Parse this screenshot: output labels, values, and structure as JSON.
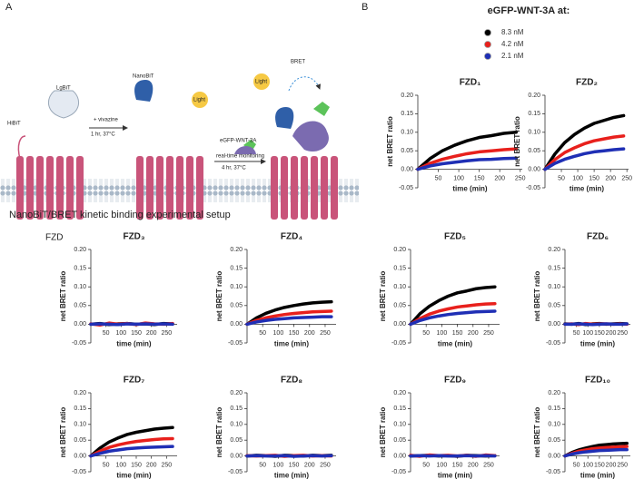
{
  "setup": {
    "panel_label": "A",
    "hibit": "HiBiT",
    "lgbit": "LgBiT",
    "vivazine": "+ vivazine",
    "step1_time": "1 hr, 37°C",
    "nanobit": "NanoBiT",
    "light1": "Light",
    "ligand": "eGFP-WNT-3A",
    "monitoring": "real-time monitoring",
    "step2_time": "4 hr, 37°C",
    "light2": "Light",
    "bret": "BRET",
    "receptor": "FZD",
    "caption": "NanoBiT/BRET kinetic binding experimental setup"
  },
  "panel_b_label": "B",
  "chart_data": [
    {
      "type": "line",
      "title": "FZD₁",
      "legend_title": "eGFP-WNT-3A at:",
      "x_label": "time (min)",
      "y_label": "net BRET ratio",
      "x": [
        0,
        30,
        60,
        90,
        120,
        150,
        180,
        210,
        240
      ],
      "series": [
        {
          "name": "8.3 nM",
          "color": "#000000",
          "values": [
            0,
            0.029,
            0.05,
            0.065,
            0.077,
            0.086,
            0.091,
            0.097,
            0.1
          ]
        },
        {
          "name": "4.2 nM",
          "color": "#e8201c",
          "values": [
            0,
            0.016,
            0.027,
            0.035,
            0.042,
            0.047,
            0.05,
            0.053,
            0.055
          ]
        },
        {
          "name": "2.1 nM",
          "color": "#1f2fb5",
          "values": [
            0,
            0.009,
            0.015,
            0.019,
            0.023,
            0.026,
            0.027,
            0.029,
            0.03
          ]
        }
      ],
      "xlim": [
        0,
        255
      ],
      "xticks": [
        50,
        100,
        150,
        200,
        250
      ],
      "ylim": [
        -0.05,
        0.2
      ],
      "yticks": [
        {
          "value": -0.05,
          "label": "-0.05"
        },
        {
          "value": 0,
          "label": "0.00"
        },
        {
          "value": 0.05,
          "label": "0.05"
        },
        {
          "value": 0.1,
          "label": "0.10"
        },
        {
          "value": 0.15,
          "label": "0.15"
        },
        {
          "value": 0.2,
          "label": "0.20"
        }
      ]
    },
    {
      "type": "line",
      "title": "FZD₂",
      "x_label": "time (min)",
      "y_label": "net BRET ratio",
      "x": [
        0,
        30,
        60,
        90,
        120,
        150,
        180,
        210,
        240
      ],
      "series": [
        {
          "color": "#000000",
          "values": [
            0,
            0.041,
            0.072,
            0.094,
            0.111,
            0.124,
            0.132,
            0.14,
            0.145
          ]
        },
        {
          "color": "#e8201c",
          "values": [
            0,
            0.026,
            0.045,
            0.058,
            0.069,
            0.077,
            0.082,
            0.087,
            0.09
          ]
        },
        {
          "color": "#1f2fb5",
          "values": [
            0,
            0.016,
            0.027,
            0.035,
            0.042,
            0.047,
            0.05,
            0.053,
            0.055
          ]
        }
      ],
      "xlim": [
        0,
        255
      ],
      "xticks": [
        50,
        100,
        150,
        200,
        250
      ],
      "ylim": [
        -0.05,
        0.2
      ],
      "yticks": [
        {
          "value": -0.05,
          "label": "-0.05"
        },
        {
          "value": 0,
          "label": "0.00"
        },
        {
          "value": 0.05,
          "label": "0.05"
        },
        {
          "value": 0.1,
          "label": "0.10"
        },
        {
          "value": 0.15,
          "label": "0.15"
        },
        {
          "value": 0.2,
          "label": "0.20"
        }
      ]
    },
    {
      "type": "line",
      "title": "FZD₃",
      "x_label": "time (min)",
      "y_label": "net BRET ratio",
      "x": [
        0,
        30,
        60,
        90,
        120,
        150,
        180,
        210,
        240,
        270
      ],
      "series": [
        {
          "color": "#000000",
          "values": [
            0,
            0.002,
            -0.001,
            0.001,
            0.002,
            0,
            0.001,
            -0.001,
            0.002,
            0.001
          ]
        },
        {
          "color": "#e8201c",
          "values": [
            0.001,
            -0.002,
            0.003,
            0,
            0.002,
            -0.001,
            0.003,
            0.001,
            0,
            0.002
          ]
        },
        {
          "color": "#1f2fb5",
          "values": [
            0,
            0.001,
            0,
            -0.001,
            0.001,
            0,
            0.001,
            0,
            0.001,
            0
          ]
        }
      ],
      "xlim": [
        0,
        285
      ],
      "xticks": [
        50,
        100,
        150,
        200,
        250
      ],
      "ylim": [
        -0.05,
        0.2
      ],
      "yticks": [
        {
          "value": -0.05,
          "label": "-0.05"
        },
        {
          "value": 0,
          "label": "0.00"
        },
        {
          "value": 0.05,
          "label": "0.05"
        },
        {
          "value": 0.1,
          "label": "0.10"
        },
        {
          "value": 0.15,
          "label": "0.15"
        },
        {
          "value": 0.2,
          "label": "0.20"
        }
      ]
    },
    {
      "type": "line",
      "title": "FZD₄",
      "x_label": "time (min)",
      "y_label": "net BRET ratio",
      "x": [
        0,
        30,
        60,
        90,
        120,
        150,
        180,
        210,
        240,
        270
      ],
      "series": [
        {
          "color": "#000000",
          "values": [
            0,
            0.017,
            0.029,
            0.038,
            0.045,
            0.05,
            0.054,
            0.057,
            0.059,
            0.06
          ]
        },
        {
          "color": "#e8201c",
          "values": [
            0,
            0.01,
            0.017,
            0.022,
            0.026,
            0.029,
            0.031,
            0.033,
            0.034,
            0.035
          ]
        },
        {
          "color": "#1f2fb5",
          "values": [
            0,
            0.006,
            0.01,
            0.013,
            0.015,
            0.017,
            0.018,
            0.019,
            0.02,
            0.02
          ]
        }
      ],
      "xlim": [
        0,
        285
      ],
      "xticks": [
        50,
        100,
        150,
        200,
        250
      ],
      "ylim": [
        -0.05,
        0.2
      ],
      "yticks": [
        {
          "value": -0.05,
          "label": "-0.05"
        },
        {
          "value": 0,
          "label": "0.00"
        },
        {
          "value": 0.05,
          "label": "0.05"
        },
        {
          "value": 0.1,
          "label": "0.10"
        },
        {
          "value": 0.15,
          "label": "0.15"
        },
        {
          "value": 0.2,
          "label": "0.20"
        }
      ]
    },
    {
      "type": "line",
      "title": "FZD₅",
      "x_label": "time (min)",
      "y_label": "net BRET ratio",
      "x": [
        0,
        30,
        60,
        90,
        120,
        150,
        180,
        210,
        240,
        270
      ],
      "series": [
        {
          "color": "#000000",
          "values": [
            0,
            0.028,
            0.048,
            0.063,
            0.075,
            0.084,
            0.089,
            0.095,
            0.098,
            0.1
          ]
        },
        {
          "color": "#e8201c",
          "values": [
            0,
            0.015,
            0.027,
            0.035,
            0.041,
            0.046,
            0.049,
            0.052,
            0.054,
            0.055
          ]
        },
        {
          "color": "#1f2fb5",
          "values": [
            0,
            0.01,
            0.017,
            0.022,
            0.026,
            0.029,
            0.031,
            0.033,
            0.034,
            0.035
          ]
        }
      ],
      "xlim": [
        0,
        285
      ],
      "xticks": [
        50,
        100,
        150,
        200,
        250
      ],
      "ylim": [
        -0.05,
        0.2
      ],
      "yticks": [
        {
          "value": -0.05,
          "label": "-0.05"
        },
        {
          "value": 0,
          "label": "0.00"
        },
        {
          "value": 0.05,
          "label": "0.05"
        },
        {
          "value": 0.1,
          "label": "0.10"
        },
        {
          "value": 0.15,
          "label": "0.15"
        },
        {
          "value": 0.2,
          "label": "0.20"
        }
      ]
    },
    {
      "type": "line",
      "title": "FZD₆",
      "x_label": "time (min)",
      "y_label": "net BRET ratio",
      "x": [
        0,
        30,
        60,
        90,
        120,
        150,
        180,
        210,
        240,
        270
      ],
      "series": [
        {
          "color": "#000000",
          "values": [
            0.001,
            0,
            0.002,
            -0.001,
            0.001,
            0.002,
            0,
            0.001,
            0.002,
            0.001
          ]
        },
        {
          "color": "#e8201c",
          "values": [
            0,
            0.001,
            -0.001,
            0.002,
            0,
            0.001,
            0.001,
            0,
            0.001,
            0
          ]
        },
        {
          "color": "#1f2fb5",
          "values": [
            0,
            0,
            0.001,
            0,
            -0.001,
            0,
            0.001,
            0,
            0,
            0.001
          ]
        }
      ],
      "xlim": [
        0,
        285
      ],
      "xticks": [
        50,
        100,
        150,
        200,
        250
      ],
      "ylim": [
        -0.05,
        0.2
      ],
      "yticks": [
        {
          "value": -0.05,
          "label": "-0.05"
        },
        {
          "value": 0,
          "label": "0.00"
        },
        {
          "value": 0.05,
          "label": "0.05"
        },
        {
          "value": 0.1,
          "label": "0.10"
        },
        {
          "value": 0.15,
          "label": "0.15"
        },
        {
          "value": 0.2,
          "label": "0.20"
        }
      ]
    },
    {
      "type": "line",
      "title": "FZD₇",
      "x_label": "time (min)",
      "y_label": "net BRET ratio",
      "x": [
        0,
        30,
        60,
        90,
        120,
        150,
        180,
        210,
        240,
        270
      ],
      "series": [
        {
          "color": "#000000",
          "values": [
            0,
            0.025,
            0.044,
            0.057,
            0.068,
            0.075,
            0.08,
            0.085,
            0.088,
            0.09
          ]
        },
        {
          "color": "#e8201c",
          "values": [
            0,
            0.015,
            0.027,
            0.035,
            0.041,
            0.046,
            0.049,
            0.052,
            0.054,
            0.055
          ]
        },
        {
          "color": "#1f2fb5",
          "values": [
            0,
            0.008,
            0.015,
            0.019,
            0.023,
            0.025,
            0.027,
            0.028,
            0.029,
            0.03
          ]
        }
      ],
      "xlim": [
        0,
        285
      ],
      "xticks": [
        50,
        100,
        150,
        200,
        250
      ],
      "ylim": [
        -0.05,
        0.2
      ],
      "yticks": [
        {
          "value": -0.05,
          "label": "-0.05"
        },
        {
          "value": 0,
          "label": "0.00"
        },
        {
          "value": 0.05,
          "label": "0.05"
        },
        {
          "value": 0.1,
          "label": "0.10"
        },
        {
          "value": 0.15,
          "label": "0.15"
        },
        {
          "value": 0.2,
          "label": "0.20"
        }
      ]
    },
    {
      "type": "line",
      "title": "FZD₈",
      "x_label": "time (min)",
      "y_label": "net BRET ratio",
      "x": [
        0,
        30,
        60,
        90,
        120,
        150,
        180,
        210,
        240,
        270
      ],
      "series": [
        {
          "color": "#000000",
          "values": [
            0,
            0.002,
            0.001,
            -0.001,
            0.002,
            0.001,
            0,
            0.002,
            0.001,
            0.002
          ]
        },
        {
          "color": "#e8201c",
          "values": [
            0.001,
            0,
            0.001,
            0.002,
            -0.001,
            0.001,
            0.002,
            0,
            0.001,
            0
          ]
        },
        {
          "color": "#1f2fb5",
          "values": [
            0,
            0.001,
            0,
            0,
            0.001,
            -0.001,
            0,
            0.001,
            0,
            0.001
          ]
        }
      ],
      "xlim": [
        0,
        285
      ],
      "xticks": [
        50,
        100,
        150,
        200,
        250
      ],
      "ylim": [
        -0.05,
        0.2
      ],
      "yticks": [
        {
          "value": -0.05,
          "label": "-0.05"
        },
        {
          "value": 0,
          "label": "0.00"
        },
        {
          "value": 0.05,
          "label": "0.05"
        },
        {
          "value": 0.1,
          "label": "0.10"
        },
        {
          "value": 0.15,
          "label": "0.15"
        },
        {
          "value": 0.2,
          "label": "0.20"
        }
      ]
    },
    {
      "type": "line",
      "title": "FZD₉",
      "x_label": "time (min)",
      "y_label": "net BRET ratio",
      "x": [
        0,
        30,
        60,
        90,
        120,
        150,
        180,
        210,
        240,
        270
      ],
      "series": [
        {
          "color": "#000000",
          "values": [
            0,
            0.001,
            0.002,
            0,
            0.001,
            -0.001,
            0.002,
            0.001,
            0,
            0.001
          ]
        },
        {
          "color": "#e8201c",
          "values": [
            0.002,
            -0.001,
            0.003,
            0.001,
            0.002,
            0,
            0.002,
            -0.001,
            0.003,
            0.001
          ]
        },
        {
          "color": "#1f2fb5",
          "values": [
            0,
            0.001,
            0,
            0.001,
            0,
            0,
            0.001,
            0,
            0.001,
            0
          ]
        }
      ],
      "xlim": [
        0,
        285
      ],
      "xticks": [
        50,
        100,
        150,
        200,
        250
      ],
      "ylim": [
        -0.05,
        0.2
      ],
      "yticks": [
        {
          "value": -0.05,
          "label": "-0.05"
        },
        {
          "value": 0,
          "label": "0.00"
        },
        {
          "value": 0.05,
          "label": "0.05"
        },
        {
          "value": 0.1,
          "label": "0.10"
        },
        {
          "value": 0.15,
          "label": "0.15"
        },
        {
          "value": 0.2,
          "label": "0.20"
        }
      ]
    },
    {
      "type": "line",
      "title": "FZD₁₀",
      "x_label": "time (min)",
      "y_label": "net BRET ratio",
      "x": [
        0,
        30,
        60,
        90,
        120,
        150,
        180,
        210,
        240,
        270
      ],
      "series": [
        {
          "color": "#000000",
          "values": [
            0,
            0.011,
            0.019,
            0.025,
            0.03,
            0.034,
            0.036,
            0.038,
            0.039,
            0.04
          ]
        },
        {
          "color": "#e8201c",
          "values": [
            0,
            0.008,
            0.015,
            0.019,
            0.023,
            0.025,
            0.027,
            0.028,
            0.029,
            0.03
          ]
        },
        {
          "color": "#1f2fb5",
          "values": [
            0,
            0.006,
            0.01,
            0.013,
            0.015,
            0.017,
            0.018,
            0.019,
            0.02,
            0.02
          ]
        }
      ],
      "xlim": [
        0,
        285
      ],
      "xticks": [
        50,
        100,
        150,
        200,
        250
      ],
      "ylim": [
        -0.05,
        0.2
      ],
      "yticks": [
        {
          "value": -0.05,
          "label": "-0.05"
        },
        {
          "value": 0,
          "label": "0.00"
        },
        {
          "value": 0.05,
          "label": "0.05"
        },
        {
          "value": 0.1,
          "label": "0.10"
        },
        {
          "value": 0.15,
          "label": "0.15"
        },
        {
          "value": 0.2,
          "label": "0.20"
        }
      ]
    }
  ]
}
